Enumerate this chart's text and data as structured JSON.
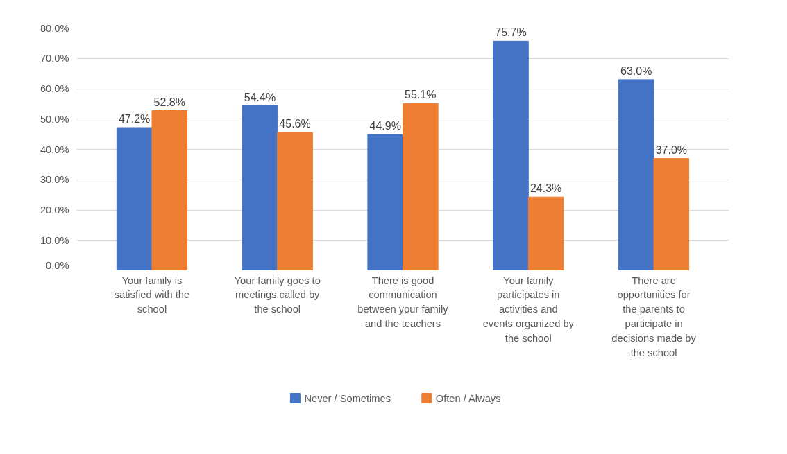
{
  "chart_data": {
    "type": "bar",
    "categories": [
      "Your family is satisfied with the school",
      "Your family goes to meetings called by the school",
      "There is good communication between your family and the teachers",
      "Your family participates in activities and events organized by the school",
      "There are opportunities for the parents to participate in decisions made by the school"
    ],
    "series": [
      {
        "name": "Never / Sometimes",
        "color": "#4472c4",
        "values": [
          47.2,
          54.4,
          44.9,
          75.7,
          63.0
        ],
        "value_labels": [
          "47.2%",
          "54.4%",
          "44.9%",
          "75.7%",
          "63.0%"
        ]
      },
      {
        "name": "Often / Always",
        "color": "#ed7d31",
        "values": [
          52.8,
          45.6,
          55.1,
          24.3,
          37.0
        ],
        "value_labels": [
          "52.8%",
          "45.6%",
          "55.1%",
          "24.3%",
          "37.0%"
        ]
      }
    ],
    "ylim": [
      0,
      80
    ],
    "yticks": [
      {
        "value": 0,
        "label": "0.0%"
      },
      {
        "value": 10,
        "label": "10.0%"
      },
      {
        "value": 20,
        "label": "20.0%"
      },
      {
        "value": 30,
        "label": "30.0%"
      },
      {
        "value": 40,
        "label": "40.0%"
      },
      {
        "value": 50,
        "label": "50.0%"
      },
      {
        "value": 60,
        "label": "60.0%"
      },
      {
        "value": 70,
        "label": "70.0%"
      },
      {
        "value": 80,
        "label": "80.0%"
      }
    ],
    "grid": "y",
    "legend": "bottom"
  }
}
